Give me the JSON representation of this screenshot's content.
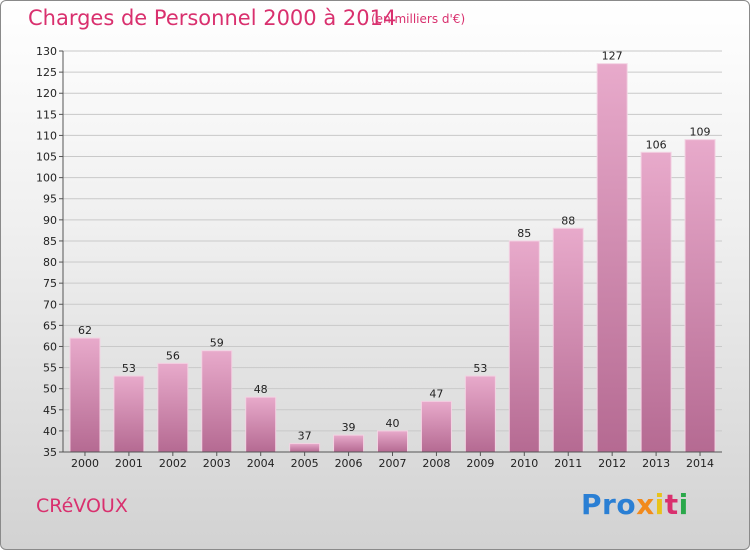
{
  "title": "Charges de Personnel 2000 à 2014",
  "subtitle": "(en milliers d'€)",
  "town": "CRéVOUX",
  "logo": {
    "p1": "Pro",
    "p2": "x",
    "p3": "i",
    "p4": "t",
    "p5": "i"
  },
  "colors": {
    "bar_top": "#e8aacb",
    "bar_bottom": "#b56a92",
    "title": "#d9306e"
  },
  "chart_data": {
    "type": "bar",
    "title": "Charges de Personnel 2000 à 2014",
    "subtitle": "(en milliers d'€)",
    "categories": [
      "2000",
      "2001",
      "2002",
      "2003",
      "2004",
      "2005",
      "2006",
      "2007",
      "2008",
      "2009",
      "2010",
      "2011",
      "2012",
      "2013",
      "2014"
    ],
    "values": [
      62,
      53,
      56,
      59,
      48,
      37,
      39,
      40,
      47,
      53,
      85,
      88,
      127,
      106,
      109
    ],
    "ylim": [
      35,
      130
    ],
    "yticks": [
      35,
      40,
      45,
      50,
      55,
      60,
      65,
      70,
      75,
      80,
      85,
      90,
      95,
      100,
      105,
      110,
      115,
      120,
      125,
      130
    ],
    "grid": true,
    "legend": "none"
  }
}
